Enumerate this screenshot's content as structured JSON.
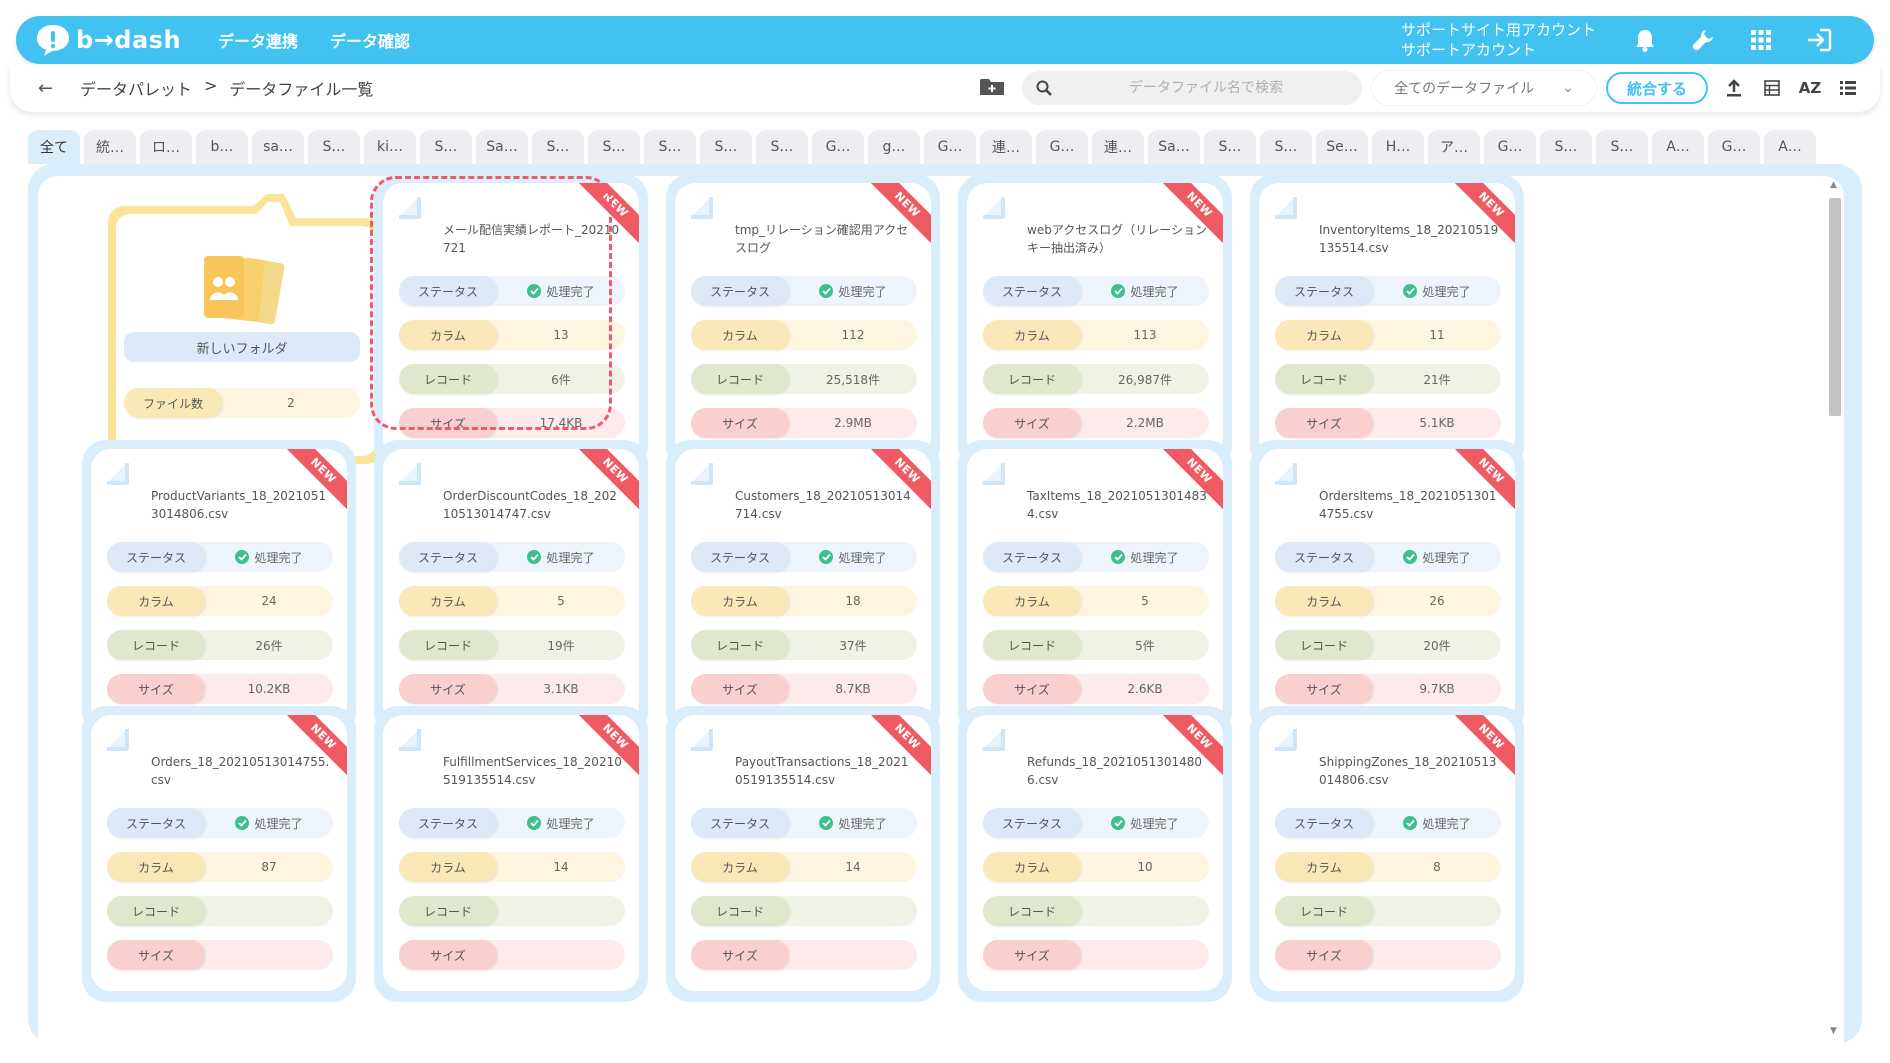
{
  "header": {
    "logo_text": "b→dash",
    "nav": [
      "データ連携",
      "データ確認"
    ],
    "account_line1": "サポートサイト用アカウント",
    "account_line2": "サポートアカウント"
  },
  "subbar": {
    "back": "←",
    "breadcrumb_root": "データパレット",
    "breadcrumb_sep": ">",
    "breadcrumb_current": "データファイル一覧",
    "search_placeholder": "データファイル名で検索",
    "filter_value": "全てのデータファイル",
    "merge_label": "統合する",
    "sort_label": "AZ"
  },
  "tabs": [
    "全て",
    "統…",
    "ロ…",
    "b…",
    "sa…",
    "S…",
    "ki…",
    "S…",
    "Sa…",
    "S…",
    "S…",
    "S…",
    "S…",
    "S…",
    "G…",
    "g…",
    "G…",
    "連…",
    "G…",
    "連…",
    "Sa…",
    "S…",
    "S…",
    "Se…",
    "H…",
    "ア…",
    "G…",
    "S…",
    "S…",
    "A…",
    "G…",
    "A…"
  ],
  "labels": {
    "status": "ステータス",
    "columns": "カラム",
    "records": "レコード",
    "size": "サイズ",
    "new": "NEW",
    "file_count": "ファイル数"
  },
  "folder": {
    "name": "新しいフォルダ",
    "file_count": "2"
  },
  "files": [
    {
      "name": "メール配信実績レポート_20210721",
      "status": "処理完了",
      "columns": "13",
      "records": "6件",
      "size": "17.4KB"
    },
    {
      "name": "tmp_リレーション確認用アクセスログ",
      "status": "処理完了",
      "columns": "112",
      "records": "25,518件",
      "size": "2.9MB"
    },
    {
      "name": "webアクセスログ（リレーションキー抽出済み）",
      "status": "処理完了",
      "columns": "113",
      "records": "26,987件",
      "size": "2.2MB"
    },
    {
      "name": "InventoryItems_18_20210519135514.csv",
      "status": "処理完了",
      "columns": "11",
      "records": "21件",
      "size": "5.1KB"
    },
    {
      "name": "ProductVariants_18_20210513014806.csv",
      "status": "処理完了",
      "columns": "24",
      "records": "26件",
      "size": "10.2KB"
    },
    {
      "name": "OrderDiscountCodes_18_20210513014747.csv",
      "status": "処理完了",
      "columns": "5",
      "records": "19件",
      "size": "3.1KB"
    },
    {
      "name": "Customers_18_20210513014714.csv",
      "status": "処理完了",
      "columns": "18",
      "records": "37件",
      "size": "8.7KB"
    },
    {
      "name": "TaxItems_18_20210513014834.csv",
      "status": "処理完了",
      "columns": "5",
      "records": "5件",
      "size": "2.6KB"
    },
    {
      "name": "OrdersItems_18_20210513014755.csv",
      "status": "処理完了",
      "columns": "26",
      "records": "20件",
      "size": "9.7KB"
    },
    {
      "name": "Orders_18_20210513014755.csv",
      "status": "処理完了",
      "columns": "87",
      "records": "",
      "size": ""
    },
    {
      "name": "FulfillmentServices_18_20210519135514.csv",
      "status": "処理完了",
      "columns": "14",
      "records": "",
      "size": ""
    },
    {
      "name": "PayoutTransactions_18_20210519135514.csv",
      "status": "処理完了",
      "columns": "14",
      "records": "",
      "size": ""
    },
    {
      "name": "Refunds_18_20210513014806.csv",
      "status": "処理完了",
      "columns": "10",
      "records": "",
      "size": ""
    },
    {
      "name": "ShippingZones_18_20210513014806.csv",
      "status": "処理完了",
      "columns": "8",
      "records": "",
      "size": ""
    }
  ],
  "colors": {
    "brand": "#41c2f0",
    "new_ribbon": "#ef5a63",
    "status_ok": "#3fbf8f"
  }
}
